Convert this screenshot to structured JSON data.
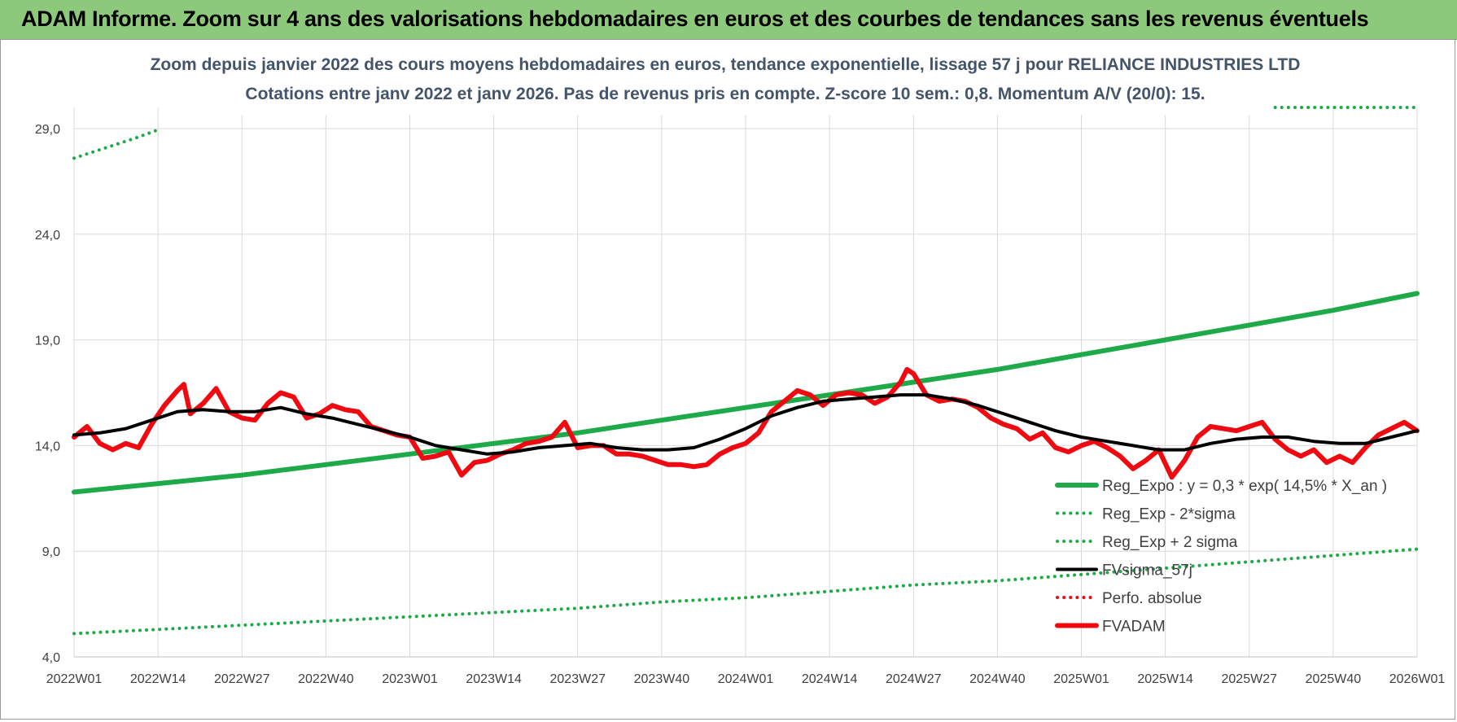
{
  "banner": {
    "title": "ADAM Informe. Zoom sur 4 ans des valorisations hebdomadaires en euros et des courbes de tendances sans les revenus éventuels"
  },
  "chart_data": {
    "type": "line",
    "title_line1": "Zoom depuis janvier 2022 des cours moyens hebdomadaires en euros, tendance exponentielle, lissage 57 j pour RELIANCE INDUSTRIES LTD",
    "title_line2": "Cotations entre janv 2022 et janv 2026. Pas de revenus pris en compte. Z-score 10 sem.: 0,8. Momentum A/V (20/0): 15.",
    "ylim": [
      4,
      30
    ],
    "yticks": [
      4,
      9,
      14,
      19,
      24,
      29
    ],
    "ytick_labels": [
      "4,0",
      "9,0",
      "14,0",
      "19,0",
      "24,0",
      "29,0"
    ],
    "xlim": [
      0,
      208
    ],
    "xticks": [
      0,
      13,
      26,
      39,
      52,
      65,
      78,
      91,
      104,
      117,
      130,
      143,
      156,
      169,
      182,
      195,
      208
    ],
    "xtick_labels": [
      "2022W01",
      "2022W14",
      "2022W27",
      "2022W40",
      "2023W01",
      "2023W14",
      "2023W27",
      "2023W40",
      "2024W01",
      "2024W14",
      "2024W27",
      "2024W40",
      "2025W01",
      "2025W14",
      "2025W27",
      "2025W40",
      "2026W01"
    ],
    "grid": true,
    "legend_position": "lower-right",
    "series": [
      {
        "name": "Reg_Expo : y = 0,3 * exp( 14,5% *  X_an )",
        "style": "solid-thick",
        "color": "#1faa4a",
        "x": [
          0,
          13,
          26,
          39,
          52,
          65,
          78,
          91,
          104,
          117,
          130,
          143,
          156,
          169,
          182,
          195,
          208
        ],
        "values": [
          11.8,
          12.2,
          12.6,
          13.1,
          13.6,
          14.1,
          14.6,
          15.2,
          15.8,
          16.4,
          17.0,
          17.6,
          18.3,
          19.0,
          19.7,
          20.4,
          21.2
        ]
      },
      {
        "name": "Reg_Exp - 2*sigma",
        "style": "dotted",
        "color": "#1faa4a",
        "x": [
          0,
          13,
          26,
          39,
          52,
          65,
          78,
          91,
          104,
          117,
          130,
          143,
          156,
          169,
          182,
          195,
          208
        ],
        "values": [
          5.1,
          5.3,
          5.5,
          5.7,
          5.9,
          6.1,
          6.3,
          6.6,
          6.8,
          7.1,
          7.4,
          7.6,
          7.9,
          8.2,
          8.5,
          8.8,
          9.1
        ]
      },
      {
        "name": "Reg_Exp + 2 sigma",
        "style": "dotted",
        "color": "#1faa4a",
        "x": [
          0,
          5,
          10,
          13.5
        ],
        "values": [
          27.6,
          28.1,
          28.6,
          29.0
        ],
        "x2": [
          185,
          195,
          208
        ],
        "values2": [
          30.0,
          30.0,
          30.0
        ]
      },
      {
        "name": "FVsigma_57j",
        "style": "solid",
        "color": "#000000",
        "x": [
          0,
          4,
          8,
          12,
          16,
          20,
          24,
          28,
          32,
          36,
          40,
          44,
          48,
          52,
          56,
          60,
          64,
          68,
          72,
          76,
          80,
          84,
          88,
          92,
          96,
          100,
          104,
          108,
          112,
          116,
          120,
          124,
          128,
          132,
          136,
          140,
          144,
          148,
          152,
          156,
          160,
          164,
          168,
          172,
          176,
          180,
          184,
          188,
          192,
          196,
          200,
          204,
          208
        ],
        "values": [
          14.5,
          14.6,
          14.8,
          15.2,
          15.6,
          15.7,
          15.6,
          15.6,
          15.8,
          15.5,
          15.3,
          15.0,
          14.7,
          14.4,
          14.0,
          13.8,
          13.6,
          13.7,
          13.9,
          14.0,
          14.1,
          13.9,
          13.8,
          13.8,
          13.9,
          14.3,
          14.8,
          15.4,
          15.8,
          16.1,
          16.2,
          16.3,
          16.4,
          16.4,
          16.2,
          15.9,
          15.5,
          15.1,
          14.7,
          14.4,
          14.2,
          14.0,
          13.8,
          13.8,
          14.1,
          14.3,
          14.4,
          14.4,
          14.2,
          14.1,
          14.1,
          14.4,
          14.7
        ]
      },
      {
        "name": "Perfo. absolue",
        "style": "dotted",
        "color": "#e0101c",
        "x": [],
        "values": []
      },
      {
        "name": "FVADAM",
        "style": "solid-thick",
        "color": "#ee0a10",
        "x": [
          0,
          2,
          4,
          6,
          8,
          10,
          12,
          14,
          16,
          17,
          18,
          20,
          22,
          24,
          26,
          28,
          30,
          32,
          34,
          36,
          38,
          40,
          42,
          44,
          46,
          48,
          50,
          52,
          54,
          56,
          58,
          60,
          62,
          64,
          66,
          68,
          70,
          72,
          74,
          76,
          78,
          80,
          82,
          84,
          86,
          88,
          90,
          92,
          94,
          96,
          98,
          100,
          102,
          104,
          106,
          108,
          110,
          112,
          114,
          116,
          118,
          120,
          122,
          124,
          126,
          128,
          129,
          130,
          132,
          134,
          136,
          138,
          140,
          142,
          144,
          146,
          148,
          150,
          152,
          154,
          156,
          158,
          160,
          162,
          164,
          166,
          168,
          170,
          172,
          174,
          176,
          178,
          180,
          182,
          184,
          186,
          188,
          190,
          192,
          194,
          196,
          198,
          200,
          202,
          204,
          206,
          208
        ],
        "values": [
          14.4,
          14.9,
          14.1,
          13.8,
          14.1,
          13.9,
          15.0,
          15.9,
          16.6,
          16.9,
          15.5,
          16.0,
          16.7,
          15.6,
          15.3,
          15.2,
          16.0,
          16.5,
          16.3,
          15.3,
          15.5,
          15.9,
          15.7,
          15.6,
          14.9,
          14.7,
          14.5,
          14.4,
          13.4,
          13.5,
          13.7,
          12.6,
          13.2,
          13.3,
          13.6,
          13.8,
          14.1,
          14.2,
          14.4,
          15.1,
          13.9,
          14.0,
          14.0,
          13.6,
          13.6,
          13.5,
          13.3,
          13.1,
          13.1,
          13.0,
          13.1,
          13.6,
          13.9,
          14.1,
          14.6,
          15.6,
          16.1,
          16.6,
          16.4,
          15.9,
          16.4,
          16.5,
          16.4,
          16.0,
          16.3,
          17.0,
          17.6,
          17.4,
          16.4,
          16.1,
          16.2,
          16.1,
          15.8,
          15.3,
          15.0,
          14.8,
          14.3,
          14.6,
          13.9,
          13.7,
          14.0,
          14.2,
          13.9,
          13.5,
          12.9,
          13.3,
          13.8,
          12.5,
          13.3,
          14.4,
          14.9,
          14.8,
          14.7,
          14.9,
          15.1,
          14.3,
          13.8,
          13.5,
          13.8,
          13.2,
          13.5,
          13.2,
          13.9,
          14.5,
          14.8,
          15.1,
          14.7
        ]
      }
    ]
  }
}
